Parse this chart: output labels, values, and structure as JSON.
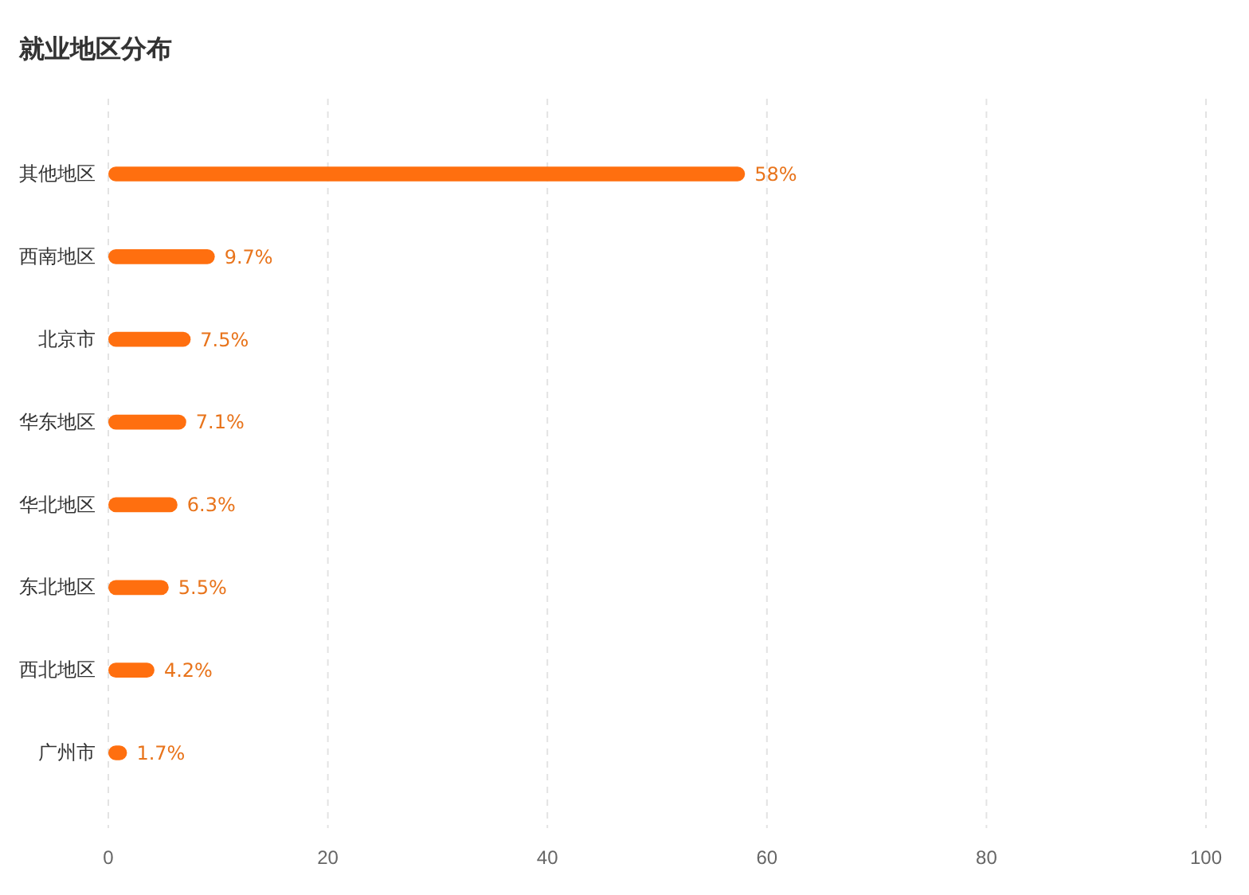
{
  "chart_data": {
    "type": "bar",
    "orientation": "horizontal",
    "title": "就业地区分布",
    "categories": [
      "其他地区",
      "西南地区",
      "北京市",
      "华东地区",
      "华北地区",
      "东北地区",
      "西北地区",
      "广州市"
    ],
    "values": [
      58,
      9.7,
      7.5,
      7.1,
      6.3,
      5.5,
      4.2,
      1.7
    ],
    "value_labels": [
      "58%",
      "9.7%",
      "7.5%",
      "7.1%",
      "6.3%",
      "5.5%",
      "4.2%",
      "1.7%"
    ],
    "color": "#ff6f0f",
    "xlim": [
      0,
      100
    ],
    "xticks": [
      0,
      20,
      40,
      60,
      80,
      100
    ],
    "grid": "x"
  }
}
